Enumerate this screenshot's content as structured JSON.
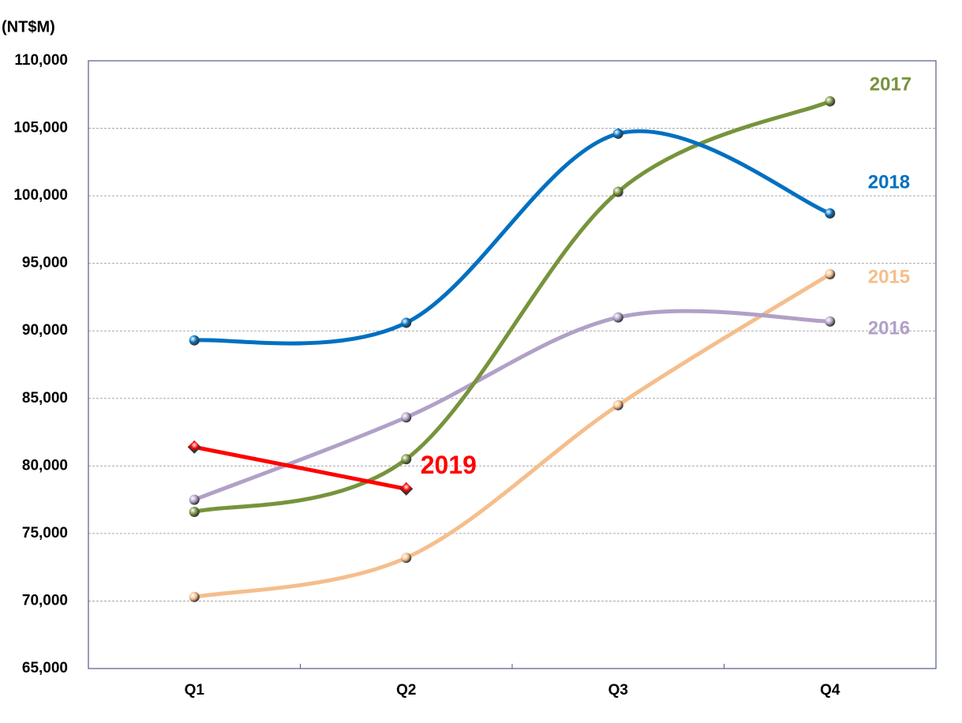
{
  "chart_data": {
    "type": "line",
    "y_axis_label": "(NT$M)",
    "categories": [
      "Q1",
      "Q2",
      "Q3",
      "Q4"
    ],
    "series": [
      {
        "name": "2015",
        "color": "#f5be8c",
        "smooth": true,
        "values": [
          70300,
          73200,
          84500,
          94200
        ]
      },
      {
        "name": "2016",
        "color": "#b1a0c7",
        "smooth": true,
        "values": [
          77500,
          83600,
          91000,
          90700
        ]
      },
      {
        "name": "2017",
        "color": "#77933c",
        "smooth": true,
        "values": [
          76600,
          80500,
          100300,
          107000
        ]
      },
      {
        "name": "2018",
        "color": "#0070c0",
        "smooth": true,
        "values": [
          89300,
          90600,
          104600,
          98700
        ]
      },
      {
        "name": "2019",
        "color": "#ff0000",
        "smooth": false,
        "values": [
          81400,
          78300,
          null,
          null
        ]
      }
    ],
    "ylim": [
      65000,
      110000
    ],
    "yticks": [
      {
        "value": 65000,
        "label": "65,000"
      },
      {
        "value": 70000,
        "label": "70,000"
      },
      {
        "value": 75000,
        "label": "75,000"
      },
      {
        "value": 80000,
        "label": "80,000"
      },
      {
        "value": 85000,
        "label": "85,000"
      },
      {
        "value": 90000,
        "label": "90,000"
      },
      {
        "value": 95000,
        "label": "95,000"
      },
      {
        "value": 100000,
        "label": "100,000"
      },
      {
        "value": 105000,
        "label": "105,000"
      },
      {
        "value": 110000,
        "label": "110,000"
      }
    ],
    "grid": true
  }
}
